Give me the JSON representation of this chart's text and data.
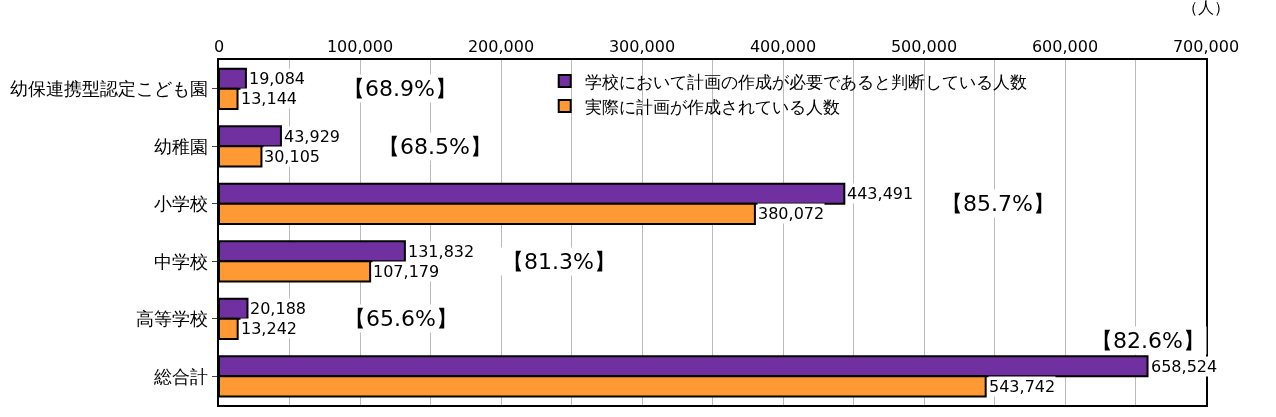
{
  "chart_data": {
    "type": "bar",
    "orientation": "horizontal",
    "xlabel": "（人）",
    "categories": [
      "幼保連携型認定こども園",
      "幼稚園",
      "小学校",
      "中学校",
      "高等学校",
      "総合計"
    ],
    "series": [
      {
        "name": "学校において計画の作成が必要であると判断している人数",
        "color": "#7030a0",
        "values": [
          19084,
          43929,
          443491,
          131832,
          20188,
          658524
        ],
        "value_labels": [
          "19,084",
          "43,929",
          "443,491",
          "131,832",
          "20,188",
          "658,524"
        ]
      },
      {
        "name": "実際に計画が作成されている人数",
        "color": "#ff9933",
        "values": [
          13144,
          30105,
          380072,
          107179,
          13242,
          543742
        ],
        "value_labels": [
          "13,144",
          "30,105",
          "380,072",
          "107,179",
          "13,242",
          "543,742"
        ]
      }
    ],
    "xlim": [
      0,
      700000
    ],
    "xticks": [
      0,
      {
        "value": 50000,
        "label": null
      },
      {
        "value": 100000,
        "label": "100,000"
      },
      {
        "value": 150000,
        "label": null
      },
      {
        "value": 200000,
        "label": "200,000"
      },
      {
        "value": 250000,
        "label": null
      },
      {
        "value": 300000,
        "label": "300,000"
      },
      {
        "value": 350000,
        "label": null
      },
      {
        "value": 400000,
        "label": "400,000"
      },
      {
        "value": 450000,
        "label": null
      },
      {
        "value": 500000,
        "label": "500,000"
      },
      {
        "value": 550000,
        "label": null
      },
      {
        "value": 600000,
        "label": "600,000"
      },
      {
        "value": 650000,
        "label": null
      },
      {
        "value": 700000,
        "label": "700,000"
      }
    ],
    "annotations": [
      "【68.9%】",
      "【68.5%】",
      "【85.7%】",
      "【81.3%】",
      "【65.6%】",
      "【82.6%】"
    ],
    "grid": "x",
    "legend": "top right"
  }
}
